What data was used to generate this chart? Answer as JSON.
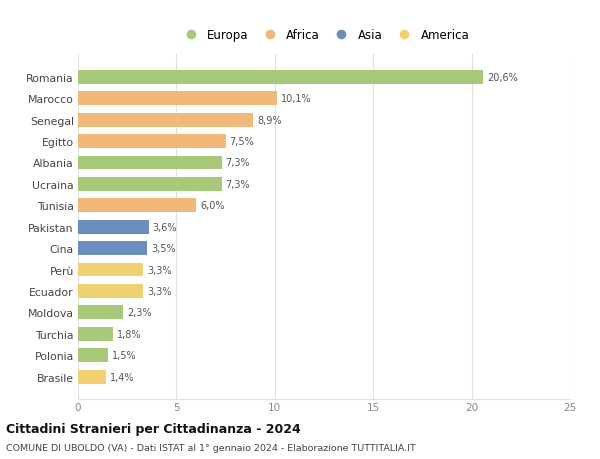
{
  "countries": [
    "Romania",
    "Marocco",
    "Senegal",
    "Egitto",
    "Albania",
    "Ucraina",
    "Tunisia",
    "Pakistan",
    "Cina",
    "Perù",
    "Ecuador",
    "Moldova",
    "Turchia",
    "Polonia",
    "Brasile"
  ],
  "values": [
    20.6,
    10.1,
    8.9,
    7.5,
    7.3,
    7.3,
    6.0,
    3.6,
    3.5,
    3.3,
    3.3,
    2.3,
    1.8,
    1.5,
    1.4
  ],
  "labels": [
    "20,6%",
    "10,1%",
    "8,9%",
    "7,5%",
    "7,3%",
    "7,3%",
    "6,0%",
    "3,6%",
    "3,5%",
    "3,3%",
    "3,3%",
    "2,3%",
    "1,8%",
    "1,5%",
    "1,4%"
  ],
  "continents": [
    "Europa",
    "Africa",
    "Africa",
    "Africa",
    "Europa",
    "Europa",
    "Africa",
    "Asia",
    "Asia",
    "America",
    "America",
    "Europa",
    "Europa",
    "Europa",
    "America"
  ],
  "colors": {
    "Europa": "#a8c87a",
    "Africa": "#f0b87a",
    "Asia": "#6b8ec0",
    "America": "#f0d070"
  },
  "legend_order": [
    "Europa",
    "Africa",
    "Asia",
    "America"
  ],
  "xlim": [
    0,
    25
  ],
  "xticks": [
    0,
    5,
    10,
    15,
    20,
    25
  ],
  "title": "Cittadini Stranieri per Cittadinanza - 2024",
  "subtitle": "COMUNE DI UBOLDO (VA) - Dati ISTAT al 1° gennaio 2024 - Elaborazione TUTTITALIA.IT",
  "background_color": "#ffffff",
  "grid_color": "#e0e0e0",
  "bar_height": 0.65
}
